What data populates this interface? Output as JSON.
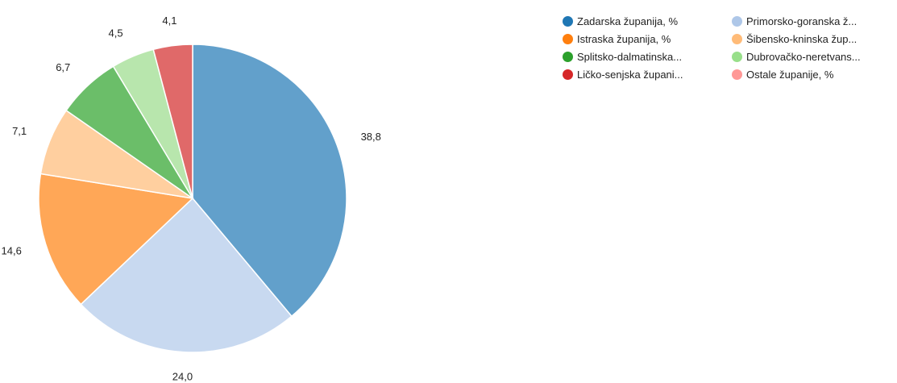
{
  "chart_data": {
    "type": "pie",
    "values": [
      38.8,
      24.0,
      14.6,
      7.1,
      6.7,
      4.5,
      4.1
    ],
    "labels": [
      "38,8",
      "24,0",
      "14,6",
      "7,1",
      "6,7",
      "4,5",
      "4,1"
    ],
    "slice_colors": [
      "#62a0cb",
      "#c8d9f0",
      "#ffa757",
      "#ffcf9f",
      "#6bbe69",
      "#b8e6ad",
      "#e06969"
    ],
    "legend": [
      {
        "label": "Zadarska županija, %",
        "color": "#1f77b4"
      },
      {
        "label": "Primorsko-goranska ž...",
        "color": "#aec7e8"
      },
      {
        "label": "Istraska županija, %",
        "color": "#ff7f0e"
      },
      {
        "label": "Šibensko-kninska žup...",
        "color": "#ffbb78"
      },
      {
        "label": "Splitsko-dalmatinska...",
        "color": "#2ca02c"
      },
      {
        "label": "Dubrovačko-neretvans...",
        "color": "#98df8a"
      },
      {
        "label": "Ličko-senjska župani...",
        "color": "#d62728"
      },
      {
        "label": "Ostale županije, %",
        "color": "#ff9896"
      }
    ],
    "legend_placement": "top-right"
  }
}
